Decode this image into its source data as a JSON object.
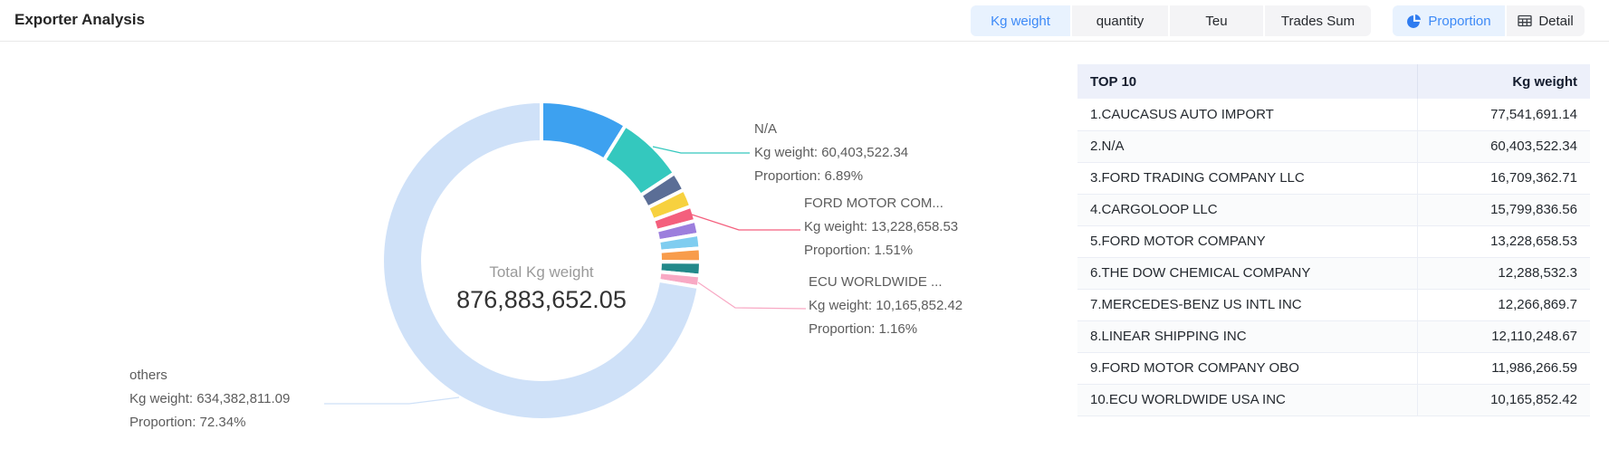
{
  "header": {
    "title": "Exporter Analysis"
  },
  "toolbar": {
    "metric_tabs": [
      {
        "label": "Kg weight",
        "active": true
      },
      {
        "label": "quantity",
        "active": false
      },
      {
        "label": "Teu",
        "active": false
      },
      {
        "label": "Trades Sum",
        "active": false
      }
    ],
    "view_tabs": [
      {
        "label": "Proportion",
        "icon": "pie-chart-icon",
        "active": true
      },
      {
        "label": "Detail",
        "icon": "table-grid-icon",
        "active": false
      }
    ],
    "colors": {
      "tab_active_bg": "#e8f2fe",
      "tab_active_text": "#3d8af7",
      "tab_bg": "#f4f4f6",
      "tab_text": "#26292e"
    }
  },
  "chart_data": {
    "type": "pie",
    "title": "Exporter Analysis - Kg weight Proportion",
    "total_label": "Total Kg weight",
    "total_value": "876,883,652.05",
    "donut": true,
    "legend_position": "none",
    "series": [
      {
        "name": "CAUCASUS AUTO IMPORT",
        "value": 77541691.14,
        "pct": 8.84,
        "color": "#3da1f0"
      },
      {
        "name": "N/A",
        "value": 60403522.34,
        "pct": 6.89,
        "color": "#34c8be"
      },
      {
        "name": "FORD TRADING COMPANY LLC",
        "value": 16709362.71,
        "pct": 1.91,
        "color": "#5b6e96"
      },
      {
        "name": "CARGOLOOP LLC",
        "value": 15799836.56,
        "pct": 1.8,
        "color": "#f7d13f"
      },
      {
        "name": "FORD MOTOR COMPANY",
        "value": 13228658.53,
        "pct": 1.51,
        "color": "#f45f7d"
      },
      {
        "name": "THE DOW CHEMICAL COMPANY",
        "value": 12288532.3,
        "pct": 1.4,
        "color": "#9c7edd"
      },
      {
        "name": "MERCEDES-BENZ US INTL INC",
        "value": 12266869.7,
        "pct": 1.4,
        "color": "#7fcdf0"
      },
      {
        "name": "LINEAR SHIPPING INC",
        "value": 12110248.67,
        "pct": 1.38,
        "color": "#f89c4b"
      },
      {
        "name": "FORD MOTOR COMPANY OBO",
        "value": 11986266.59,
        "pct": 1.37,
        "color": "#23898a"
      },
      {
        "name": "ECU WORLDWIDE USA INC",
        "value": 10165852.42,
        "pct": 1.16,
        "color": "#f8a9c4"
      },
      {
        "name": "others",
        "value": 634382811.09,
        "pct": 72.34,
        "color": "#cfe1f8"
      }
    ],
    "callouts": [
      {
        "name": "N/A",
        "kg_line": "Kg weight: 60,403,522.34",
        "prop_line": "Proportion: 6.89%"
      },
      {
        "name": "FORD MOTOR COM...",
        "kg_line": "Kg weight: 13,228,658.53",
        "prop_line": "Proportion: 1.51%"
      },
      {
        "name": "ECU WORLDWIDE ...",
        "kg_line": "Kg weight: 10,165,852.42",
        "prop_line": "Proportion: 1.16%"
      },
      {
        "name": "others",
        "kg_line": "Kg weight: 634,382,811.09",
        "prop_line": "Proportion: 72.34%"
      }
    ]
  },
  "table": {
    "headers": [
      "TOP 10",
      "Kg weight"
    ],
    "rows": [
      {
        "label": "1.CAUCASUS AUTO IMPORT",
        "value": "77,541,691.14"
      },
      {
        "label": "2.N/A",
        "value": "60,403,522.34"
      },
      {
        "label": "3.FORD TRADING COMPANY LLC",
        "value": "16,709,362.71"
      },
      {
        "label": "4.CARGOLOOP LLC",
        "value": "15,799,836.56"
      },
      {
        "label": "5.FORD MOTOR COMPANY",
        "value": "13,228,658.53"
      },
      {
        "label": "6.THE DOW CHEMICAL COMPANY",
        "value": "12,288,532.3"
      },
      {
        "label": "7.MERCEDES-BENZ US INTL INC",
        "value": "12,266,869.7"
      },
      {
        "label": "8.LINEAR SHIPPING INC",
        "value": "12,110,248.67"
      },
      {
        "label": "9.FORD MOTOR COMPANY OBO",
        "value": "11,986,266.59"
      },
      {
        "label": "10.ECU WORLDWIDE USA INC",
        "value": "10,165,852.42"
      }
    ]
  }
}
